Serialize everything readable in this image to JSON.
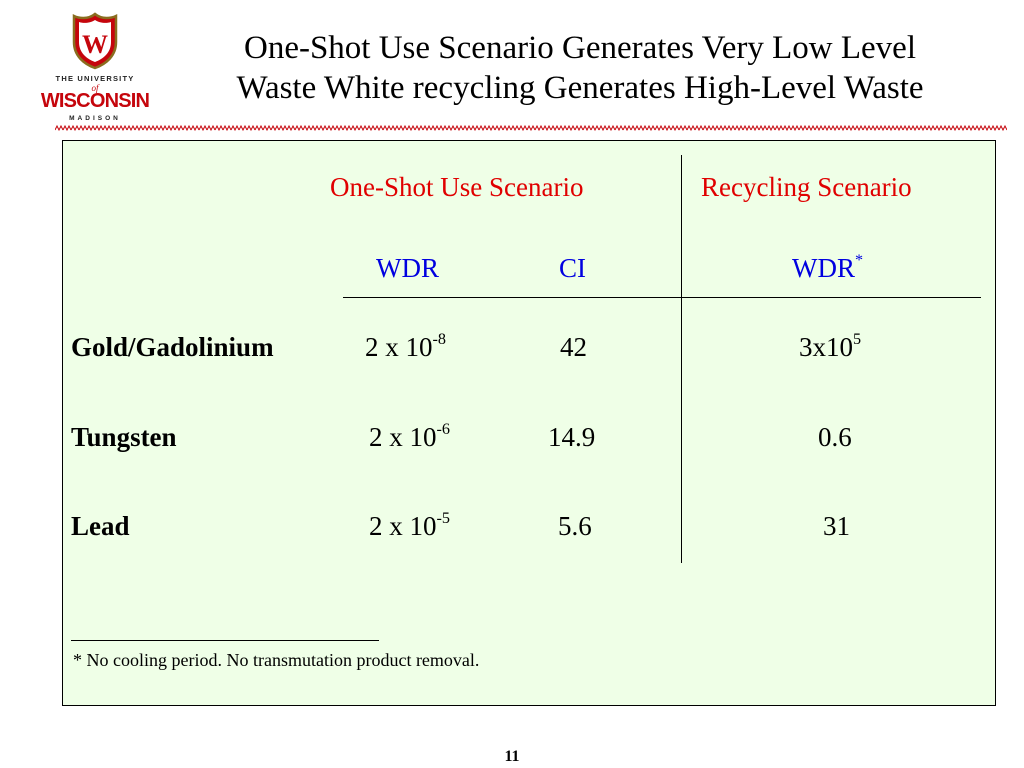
{
  "logo": {
    "crest_letter": "W",
    "line1": "THE UNIVERSITY",
    "line2": "of",
    "line3": "WISCONSIN",
    "line4": "MADISON",
    "brand_color": "#c5050c"
  },
  "title": {
    "line1": "One-Shot Use Scenario Generates Very Low Level",
    "line2": "Waste White recycling Generates High-Level Waste"
  },
  "table": {
    "group_headers": [
      "One-Shot Use Scenario",
      "Recycling Scenario"
    ],
    "col_headers": [
      {
        "label": "WDR",
        "sup": ""
      },
      {
        "label": "CI",
        "sup": ""
      },
      {
        "label": "WDR",
        "sup": "*"
      }
    ],
    "rows": [
      {
        "material": "Gold/Gadolinium",
        "wdr_base": "2 x 10",
        "wdr_exp": "-8",
        "ci": "42",
        "rec_base": "3x10",
        "rec_exp": "5"
      },
      {
        "material": "Tungsten",
        "wdr_base": "2 x 10",
        "wdr_exp": "-6",
        "ci": "14.9",
        "rec_base": "0.6",
        "rec_exp": ""
      },
      {
        "material": "Lead",
        "wdr_base": "2 x 10",
        "wdr_exp": "-5",
        "ci": "5.6",
        "rec_base": "31",
        "rec_exp": ""
      }
    ],
    "footnote": "* No cooling period. No transmutation product removal."
  },
  "page_number": "11",
  "colors": {
    "panel_bg": "#efffe7",
    "group_header": "#e00000",
    "col_header": "#0000e0"
  }
}
